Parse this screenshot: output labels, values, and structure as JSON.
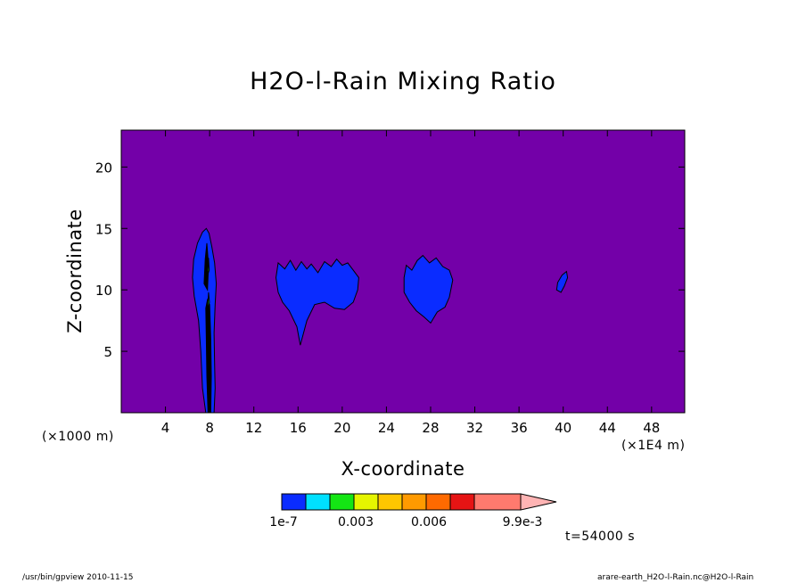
{
  "chart_data": {
    "type": "heatmap",
    "title": "H2O-l-Rain Mixing Ratio",
    "xlabel": "X-coordinate",
    "ylabel": "Z-coordinate",
    "x_unit_left": "(×1000 m)",
    "x_unit_right": "(×1E4 m)",
    "xlim": [
      0,
      51
    ],
    "ylim": [
      0,
      23
    ],
    "xticks": [
      4,
      8,
      12,
      16,
      20,
      24,
      28,
      32,
      36,
      40,
      44,
      48
    ],
    "yticks": [
      5,
      10,
      15,
      20
    ],
    "background_color": "#7300a8",
    "colorbar": {
      "colors": [
        "#0a2cff",
        "#00e0ff",
        "#14e614",
        "#e6f500",
        "#ffc600",
        "#ff9a00",
        "#ff6a00",
        "#e61414",
        "#ff7a6e",
        "#ffb4b4"
      ],
      "labels": [
        "1e-7",
        "0.003",
        "0.006",
        "9.9e-3"
      ]
    },
    "features": [
      {
        "type": "column",
        "x_center": 8.0,
        "z_bottom": 0,
        "z_top": 15.0
      },
      {
        "type": "cloud",
        "x_range": [
          14.0,
          21.5
        ],
        "z_range": [
          5.5,
          12.5
        ]
      },
      {
        "type": "cloud",
        "x_range": [
          25.5,
          30.0
        ],
        "z_range": [
          7.3,
          12.8
        ]
      },
      {
        "type": "cloud",
        "x_range": [
          39.4,
          40.4
        ],
        "z_range": [
          9.8,
          11.5
        ]
      }
    ]
  },
  "time_label": "t=54000 s",
  "footer_left": "/usr/bin/gpview   2010-11-15",
  "footer_right": "arare-earth_H2O-l-Rain.nc@H2O-l-Rain"
}
